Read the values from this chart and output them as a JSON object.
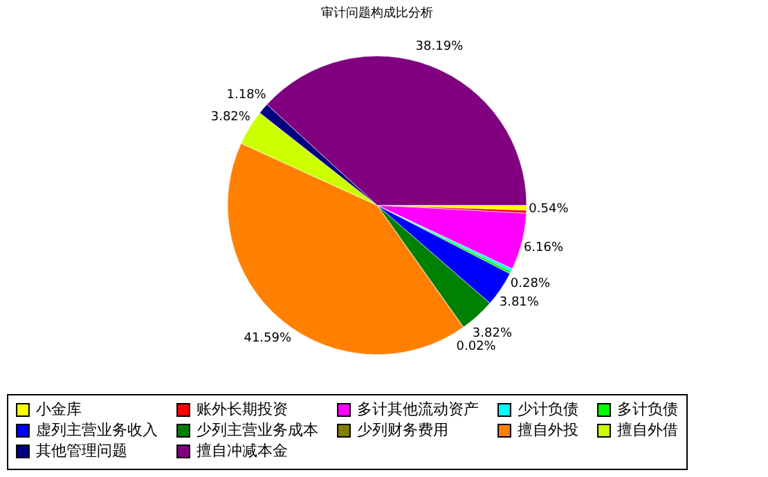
{
  "chart_data": {
    "type": "pie",
    "title": "审计问题构成比分析",
    "categories": [
      "小金库",
      "账外长期投资",
      "多计其他流动资产",
      "少计负债",
      "多计负债",
      "虚列主营业务收入",
      "少列主营业务成本",
      "少列财务费用",
      "擅自外投",
      "擅自外借",
      "其他管理问题",
      "擅自冲减本金"
    ],
    "values": [
      0.54,
      0.3,
      6.16,
      0.29,
      0.28,
      3.81,
      3.82,
      0.02,
      41.59,
      3.82,
      1.18,
      38.19
    ],
    "value_labels": [
      "0.54%",
      null,
      "6.16%",
      null,
      "0.28%",
      "3.81%",
      "3.82%",
      "0.02%",
      "41.59%",
      "3.82%",
      "1.18%",
      "38.19%"
    ],
    "colors": [
      "#ffff00",
      "#ff0000",
      "#ff00ff",
      "#00ffff",
      "#00ff00",
      "#0000ff",
      "#008000",
      "#808000",
      "#ff8000",
      "#ccff00",
      "#000080",
      "#800080"
    ],
    "legend": "bottom"
  }
}
